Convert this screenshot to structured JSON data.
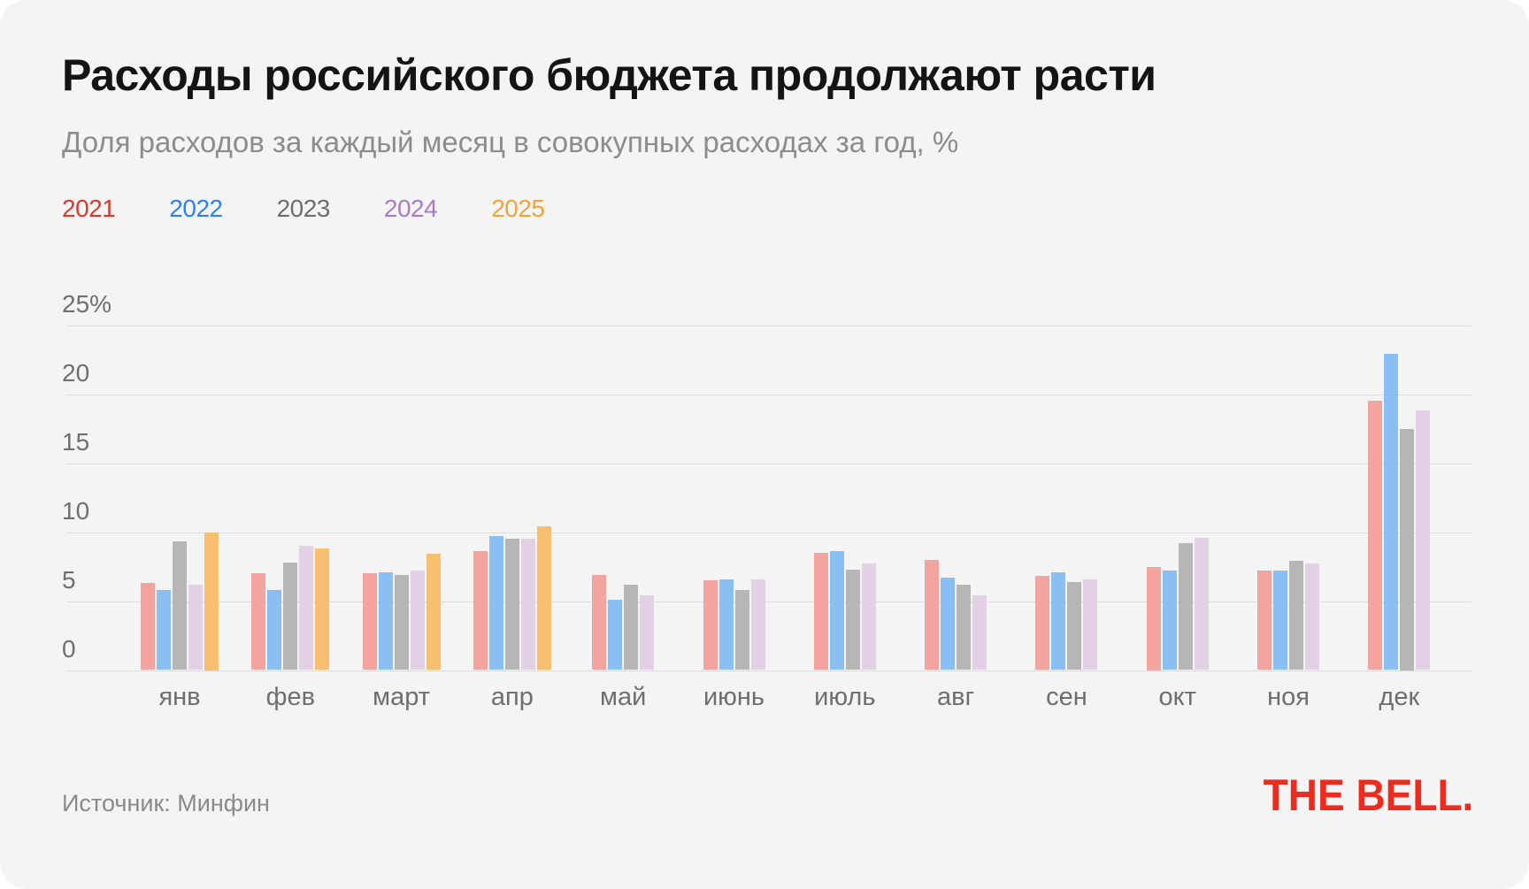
{
  "title": "Расходы российского бюджета продолжают расти",
  "subtitle": "Доля расходов за каждый месяц в совокупных расходах за год, %",
  "source": "Источник: Минфин",
  "logo": "THE BELL.",
  "colors": {
    "card_background": "#F4F4F5",
    "title_text": "#141414",
    "subtitle_text": "#8C8C8C",
    "gridline": "#DBDBDB",
    "axis_text": "#6F6F6F",
    "logo_red": "#EE2B1F"
  },
  "chart_data": {
    "type": "bar",
    "title": "Расходы российского бюджета продолжают расти",
    "subtitle": "Доля расходов за каждый месяц в совокупных расходах за год, %",
    "xlabel": "",
    "ylabel": "%",
    "ylim": [
      0,
      25
    ],
    "grid": true,
    "legend_position": "top",
    "categories": [
      "янв",
      "фев",
      "март",
      "апр",
      "май",
      "июнь",
      "июль",
      "авг",
      "сен",
      "окт",
      "ноя",
      "дек"
    ],
    "ylabels": [
      {
        "v": 25,
        "label": "25%"
      },
      {
        "v": 20,
        "label": "20"
      },
      {
        "v": 15,
        "label": "15"
      },
      {
        "v": 10,
        "label": "10"
      },
      {
        "v": 5,
        "label": "5"
      },
      {
        "v": 0,
        "label": "0"
      }
    ],
    "series": [
      {
        "name": "2021",
        "legend_color": "#D93A2F",
        "bar_color": "#F4A49E",
        "values": [
          6.3,
          7.0,
          7.0,
          8.6,
          6.9,
          6.5,
          8.5,
          8.0,
          6.8,
          7.5,
          7.2,
          19.5
        ]
      },
      {
        "name": "2022",
        "legend_color": "#3181EA",
        "bar_color": "#89BFF2",
        "values": [
          5.8,
          5.8,
          7.1,
          9.7,
          5.1,
          6.6,
          8.6,
          6.7,
          7.1,
          7.2,
          7.2,
          22.9
        ]
      },
      {
        "name": "2023",
        "legend_color": "#6E6E6E",
        "bar_color": "#B6B6B6",
        "values": [
          9.3,
          7.8,
          6.9,
          9.5,
          6.2,
          5.8,
          7.3,
          6.2,
          6.4,
          9.2,
          7.9,
          17.5
        ]
      },
      {
        "name": "2024",
        "legend_color": "#A87CC9",
        "bar_color": "#E2D0E5",
        "values": [
          6.2,
          9.0,
          7.2,
          9.5,
          5.4,
          6.6,
          7.7,
          5.4,
          6.6,
          9.6,
          7.7,
          18.8
        ]
      },
      {
        "name": "2025",
        "legend_color": "#F0A43A",
        "bar_color": "#F9BF70",
        "values": [
          10.0,
          8.8,
          8.4,
          10.4,
          null,
          null,
          null,
          null,
          null,
          null,
          null,
          null
        ]
      }
    ]
  }
}
